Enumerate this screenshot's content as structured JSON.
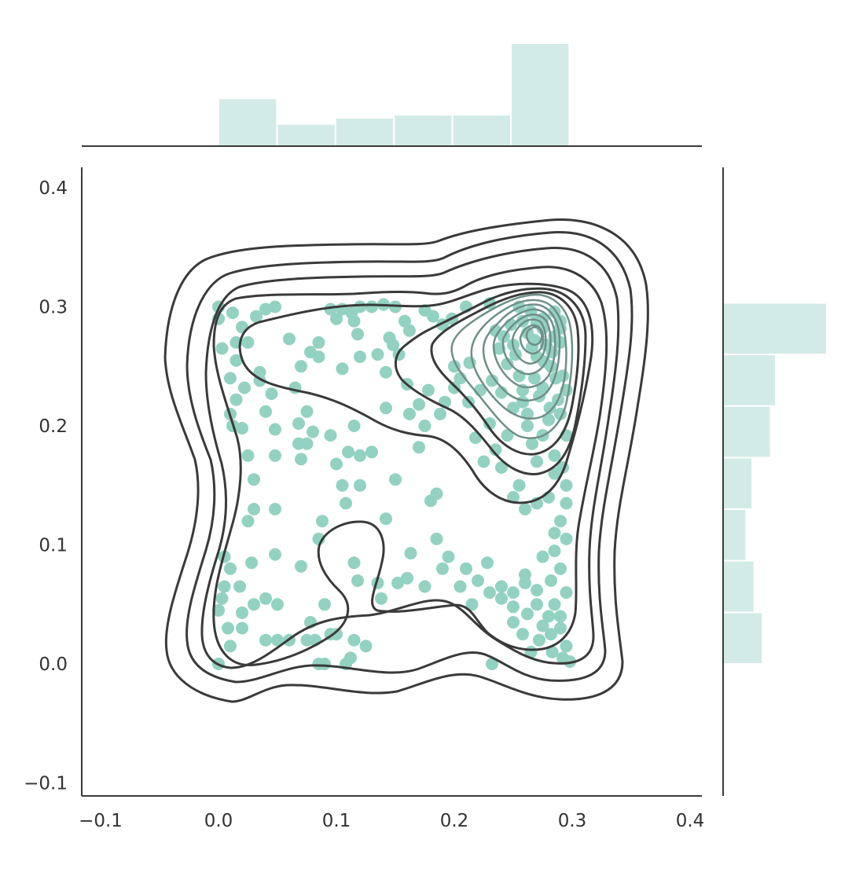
{
  "chart_data": {
    "type": "scatter",
    "title": "",
    "xlabel": "",
    "ylabel": "",
    "xlim": [
      -0.11,
      0.41
    ],
    "ylim": [
      -0.11,
      0.41
    ],
    "grid": false,
    "x_ticks": [
      -0.1,
      0.0,
      0.1,
      0.2,
      0.3,
      0.4
    ],
    "x_tick_labels": [
      "−0.1",
      "0.0",
      "0.1",
      "0.2",
      "0.3",
      "0.4"
    ],
    "y_ticks": [
      -0.1,
      0.0,
      0.1,
      0.2,
      0.3,
      0.4
    ],
    "y_tick_labels": [
      "−0.1",
      "0.0",
      "0.1",
      "0.2",
      "0.3",
      "0.4"
    ],
    "colors": {
      "points": "#93d2c1",
      "histogram": "#d3ebe6",
      "contour_dark": "#3a3a3a",
      "contour_light": "#6f8f88",
      "axis": "#3a3a3a"
    },
    "points": [
      [
        0.0,
        0.3
      ],
      [
        0.012,
        0.295
      ],
      [
        0.02,
        0.283
      ],
      [
        0.025,
        0.27
      ],
      [
        0.032,
        0.292
      ],
      [
        0.04,
        0.298
      ],
      [
        0.048,
        0.3
      ],
      [
        0.003,
        0.265
      ],
      [
        0.015,
        0.255
      ],
      [
        0.01,
        0.24
      ],
      [
        0.022,
        0.232
      ],
      [
        0.035,
        0.245
      ],
      [
        0.06,
        0.273
      ],
      [
        0.078,
        0.262
      ],
      [
        0.085,
        0.27
      ],
      [
        0.095,
        0.298
      ],
      [
        0.105,
        0.298
      ],
      [
        0.115,
        0.288
      ],
      [
        0.118,
        0.277
      ],
      [
        0.12,
        0.3
      ],
      [
        0.13,
        0.3
      ],
      [
        0.14,
        0.302
      ],
      [
        0.15,
        0.3
      ],
      [
        0.158,
        0.288
      ],
      [
        0.145,
        0.274
      ],
      [
        0.148,
        0.268
      ],
      [
        0.153,
        0.26
      ],
      [
        0.175,
        0.297
      ],
      [
        0.182,
        0.292
      ],
      [
        0.19,
        0.285
      ],
      [
        0.198,
        0.29
      ],
      [
        0.21,
        0.3
      ],
      [
        0.23,
        0.303
      ],
      [
        0.255,
        0.3
      ],
      [
        0.265,
        0.296
      ],
      [
        0.275,
        0.29
      ],
      [
        0.285,
        0.296
      ],
      [
        0.29,
        0.288
      ],
      [
        0.262,
        0.278
      ],
      [
        0.268,
        0.272
      ],
      [
        0.278,
        0.268
      ],
      [
        0.283,
        0.262
      ],
      [
        0.29,
        0.27
      ],
      [
        0.25,
        0.268
      ],
      [
        0.245,
        0.252
      ],
      [
        0.255,
        0.242
      ],
      [
        0.27,
        0.258
      ],
      [
        0.282,
        0.25
      ],
      [
        0.292,
        0.242
      ],
      [
        0.295,
        0.23
      ],
      [
        0.288,
        0.222
      ],
      [
        0.275,
        0.232
      ],
      [
        0.232,
        0.238
      ],
      [
        0.222,
        0.23
      ],
      [
        0.212,
        0.22
      ],
      [
        0.2,
        0.232
      ],
      [
        0.192,
        0.22
      ],
      [
        0.178,
        0.23
      ],
      [
        0.17,
        0.218
      ],
      [
        0.162,
        0.21
      ],
      [
        0.175,
        0.2
      ],
      [
        0.188,
        0.21
      ],
      [
        0.24,
        0.228
      ],
      [
        0.25,
        0.215
      ],
      [
        0.262,
        0.21
      ],
      [
        0.28,
        0.205
      ],
      [
        0.262,
        0.2
      ],
      [
        0.245,
        0.192
      ],
      [
        0.235,
        0.18
      ],
      [
        0.225,
        0.17
      ],
      [
        0.218,
        0.19
      ],
      [
        0.23,
        0.202
      ],
      [
        0.27,
        0.17
      ],
      [
        0.285,
        0.16
      ],
      [
        0.292,
        0.165
      ],
      [
        0.295,
        0.15
      ],
      [
        0.28,
        0.14
      ],
      [
        0.255,
        0.15
      ],
      [
        0.25,
        0.14
      ],
      [
        0.26,
        0.13
      ],
      [
        0.29,
        0.12
      ],
      [
        0.295,
        0.105
      ],
      [
        0.285,
        0.095
      ],
      [
        0.29,
        0.08
      ],
      [
        0.282,
        0.07
      ],
      [
        0.26,
        0.075
      ],
      [
        0.25,
        0.06
      ],
      [
        0.24,
        0.055
      ],
      [
        0.23,
        0.06
      ],
      [
        0.22,
        0.07
      ],
      [
        0.21,
        0.08
      ],
      [
        0.27,
        0.05
      ],
      [
        0.28,
        0.04
      ],
      [
        0.29,
        0.03
      ],
      [
        0.295,
        0.015
      ],
      [
        0.282,
        0.025
      ],
      [
        0.272,
        0.02
      ],
      [
        0.258,
        0.025
      ],
      [
        0.25,
        0.035
      ],
      [
        0.265,
        0.01
      ],
      [
        0.292,
        0.005
      ],
      [
        0.232,
        0.0
      ],
      [
        0.0,
        0.0
      ],
      [
        0.01,
        0.015
      ],
      [
        0.008,
        0.03
      ],
      [
        0.0,
        0.045
      ],
      [
        0.005,
        0.065
      ],
      [
        0.018,
        0.065
      ],
      [
        0.01,
        0.08
      ],
      [
        0.005,
        0.09
      ],
      [
        0.03,
        0.05
      ],
      [
        0.04,
        0.055
      ],
      [
        0.028,
        0.085
      ],
      [
        0.048,
        0.092
      ],
      [
        0.04,
        0.02
      ],
      [
        0.05,
        0.02
      ],
      [
        0.075,
        0.02
      ],
      [
        0.078,
        0.035
      ],
      [
        0.082,
        0.02
      ],
      [
        0.085,
        0.0
      ],
      [
        0.09,
        0.0
      ],
      [
        0.1,
        0.025
      ],
      [
        0.108,
        0.0
      ],
      [
        0.112,
        0.005
      ],
      [
        0.125,
        0.015
      ],
      [
        0.07,
        0.082
      ],
      [
        0.085,
        0.105
      ],
      [
        0.088,
        0.12
      ],
      [
        0.115,
        0.085
      ],
      [
        0.135,
        0.068
      ],
      [
        0.152,
        0.068
      ],
      [
        0.16,
        0.072
      ],
      [
        0.175,
        0.065
      ],
      [
        0.19,
        0.08
      ],
      [
        0.195,
        0.09
      ],
      [
        0.185,
        0.105
      ],
      [
        0.163,
        0.093
      ],
      [
        0.142,
        0.122
      ],
      [
        0.108,
        0.135
      ],
      [
        0.105,
        0.15
      ],
      [
        0.12,
        0.15
      ],
      [
        0.15,
        0.155
      ],
      [
        0.18,
        0.137
      ],
      [
        0.185,
        0.143
      ],
      [
        0.025,
        0.12
      ],
      [
        0.03,
        0.13
      ],
      [
        0.048,
        0.13
      ],
      [
        0.03,
        0.155
      ],
      [
        0.025,
        0.175
      ],
      [
        0.048,
        0.175
      ],
      [
        0.07,
        0.172
      ],
      [
        0.075,
        0.185
      ],
      [
        0.068,
        0.185
      ],
      [
        0.08,
        0.195
      ],
      [
        0.068,
        0.202
      ],
      [
        0.075,
        0.212
      ],
      [
        0.095,
        0.192
      ],
      [
        0.1,
        0.168
      ],
      [
        0.11,
        0.178
      ],
      [
        0.12,
        0.175
      ],
      [
        0.13,
        0.178
      ],
      [
        0.04,
        0.212
      ],
      [
        0.048,
        0.197
      ],
      [
        0.01,
        0.21
      ],
      [
        0.012,
        0.2
      ],
      [
        0.02,
        0.198
      ],
      [
        0.015,
        0.222
      ],
      [
        0.035,
        0.238
      ],
      [
        0.045,
        0.227
      ],
      [
        0.065,
        0.232
      ],
      [
        0.085,
        0.258
      ],
      [
        0.07,
        0.25
      ],
      [
        0.105,
        0.248
      ],
      [
        0.12,
        0.258
      ],
      [
        0.135,
        0.26
      ],
      [
        0.142,
        0.245
      ],
      [
        0.142,
        0.215
      ],
      [
        0.115,
        0.2
      ],
      [
        0.16,
        0.235
      ],
      [
        0.17,
        0.182
      ],
      [
        0.0,
        0.29
      ],
      [
        0.015,
        0.27
      ],
      [
        0.1,
        0.29
      ],
      [
        0.113,
        0.295
      ],
      [
        0.162,
        0.28
      ],
      [
        0.2,
        0.25
      ],
      [
        0.205,
        0.24
      ],
      [
        0.213,
        0.253
      ],
      [
        0.235,
        0.28
      ],
      [
        0.248,
        0.285
      ],
      [
        0.258,
        0.288
      ],
      [
        0.27,
        0.287
      ],
      [
        0.29,
        0.282
      ],
      [
        0.285,
        0.275
      ],
      [
        0.275,
        0.282
      ],
      [
        0.266,
        0.266
      ],
      [
        0.276,
        0.254
      ],
      [
        0.286,
        0.24
      ],
      [
        0.258,
        0.23
      ],
      [
        0.268,
        0.24
      ],
      [
        0.252,
        0.26
      ],
      [
        0.242,
        0.275
      ],
      [
        0.238,
        0.265
      ],
      [
        0.281,
        0.215
      ],
      [
        0.29,
        0.21
      ],
      [
        0.272,
        0.225
      ],
      [
        0.258,
        0.22
      ],
      [
        0.285,
        0.175
      ],
      [
        0.266,
        0.185
      ],
      [
        0.275,
        0.192
      ],
      [
        0.295,
        0.192
      ],
      [
        0.24,
        0.165
      ],
      [
        0.27,
        0.135
      ],
      [
        0.295,
        0.135
      ],
      [
        0.285,
        0.11
      ],
      [
        0.275,
        0.09
      ],
      [
        0.24,
        0.065
      ],
      [
        0.25,
        0.048
      ],
      [
        0.26,
        0.068
      ],
      [
        0.27,
        0.062
      ],
      [
        0.285,
        0.05
      ],
      [
        0.295,
        0.06
      ],
      [
        0.275,
        0.032
      ],
      [
        0.262,
        0.042
      ],
      [
        0.29,
        0.04
      ],
      [
        0.283,
        0.01
      ],
      [
        0.298,
        0.002
      ],
      [
        0.215,
        0.05
      ],
      [
        0.205,
        0.065
      ],
      [
        0.228,
        0.085
      ],
      [
        0.02,
        0.03
      ],
      [
        0.02,
        0.043
      ],
      [
        0.003,
        0.055
      ],
      [
        0.05,
        0.05
      ],
      [
        0.06,
        0.02
      ],
      [
        0.09,
        0.05
      ],
      [
        0.095,
        0.025
      ],
      [
        0.115,
        0.02
      ],
      [
        0.118,
        0.07
      ],
      [
        0.138,
        0.055
      ]
    ],
    "x_histogram": {
      "bin_edges": [
        0.0,
        0.0496,
        0.0992,
        0.1488,
        0.1984,
        0.248,
        0.2976
      ],
      "relative_heights": [
        0.46,
        0.21,
        0.27,
        0.3,
        0.3,
        1.0
      ]
    },
    "y_histogram": {
      "bin_edges": [
        0.0,
        0.0433,
        0.0867,
        0.13,
        0.1733,
        0.2167,
        0.26,
        0.3033
      ],
      "relative_heights": [
        0.37,
        0.29,
        0.21,
        0.27,
        0.45,
        0.5,
        1.0
      ]
    },
    "kde_contour_levels": 10
  }
}
